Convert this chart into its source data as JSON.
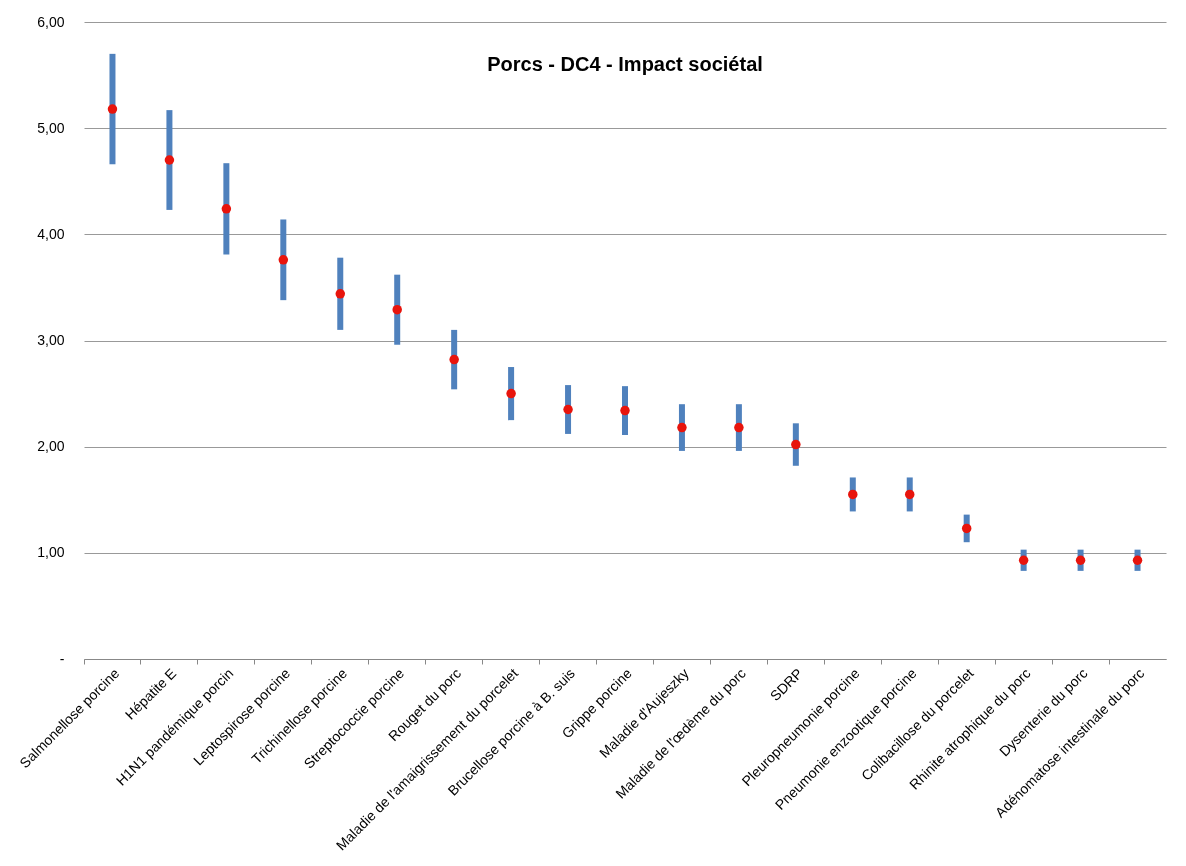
{
  "chart_data": {
    "type": "scatter",
    "title": "Porcs - DC4 - Impact sociétal",
    "categories": [
      "Salmonellose porcine",
      "Hépatite E",
      "H1N1 pandémique porcin",
      "Leptospirose porcine",
      "Trichinellose porcine",
      "Streptococcie porcine",
      "Rouget du porc",
      "Maladie de l'amaigrissement  du porcelet",
      "Brucellose porcine à B. suis",
      "Grippe porcine",
      "Maladie d'Aujeszky",
      "Maladie de l'œdème du porc",
      "SDRP",
      "Pleuropneumonie porcine",
      "Pneumonie enzootique porcine",
      "Colibacillose du porcelet",
      "Rhinite atrophique du porc",
      "Dysenterie du porc",
      "Adénomatose intestinale du porc"
    ],
    "series": [
      {
        "color": "#e8140c",
        "values": [
          5.18,
          4.7,
          4.24,
          3.76,
          3.44,
          3.29,
          2.82,
          2.5,
          2.35,
          2.34,
          2.18,
          2.18,
          2.02,
          1.55,
          1.55,
          1.23,
          0.93,
          0.93,
          0.93
        ],
        "errors": [
          0.52,
          0.47,
          0.43,
          0.38,
          0.34,
          0.33,
          0.28,
          0.25,
          0.23,
          0.23,
          0.22,
          0.22,
          0.2,
          0.16,
          0.16,
          0.13,
          0.1,
          0.1,
          0.1
        ]
      }
    ],
    "ylim": [
      0,
      6
    ],
    "yticks": [
      {
        "value": 0,
        "label": "-"
      },
      {
        "value": 1,
        "label": "1,00"
      },
      {
        "value": 2,
        "label": "2,00"
      },
      {
        "value": 3,
        "label": "3,00"
      },
      {
        "value": 4,
        "label": "4,00"
      },
      {
        "value": 5,
        "label": "5,00"
      },
      {
        "value": 6,
        "label": "6,00"
      }
    ],
    "grid": "y",
    "marker": "circle"
  }
}
